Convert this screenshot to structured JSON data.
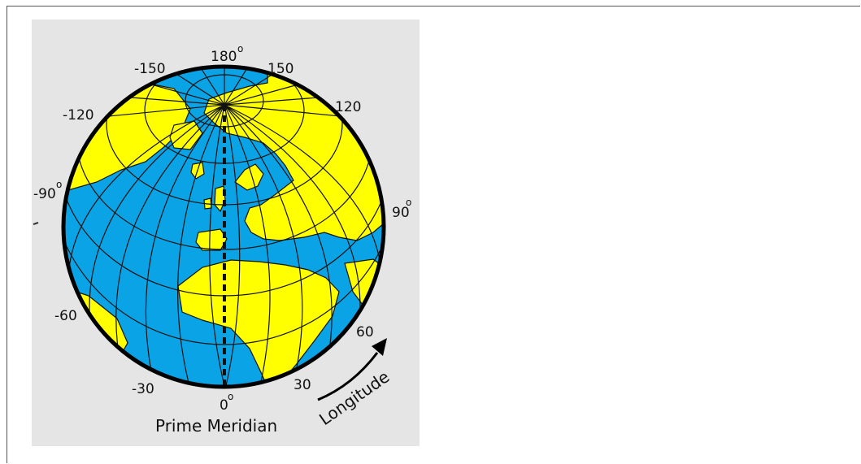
{
  "diagram": {
    "colors": {
      "ocean": "#0aa4e6",
      "land": "#ffff00",
      "grid": "#111111",
      "background": "#e5e5e5"
    },
    "longitude_labels": {
      "top": "180",
      "top_left": "-150",
      "top_right": "150",
      "upper_left": "-120",
      "upper_right": "120",
      "left": "-90",
      "right": "90",
      "lower_left": "-60",
      "lower_right": "60",
      "bottom_left": "-30",
      "bottom_right": "30",
      "bottom": "0"
    },
    "degree_symbol": "o",
    "caption": "Prime Meridian",
    "arrow_label": "Longitude"
  }
}
